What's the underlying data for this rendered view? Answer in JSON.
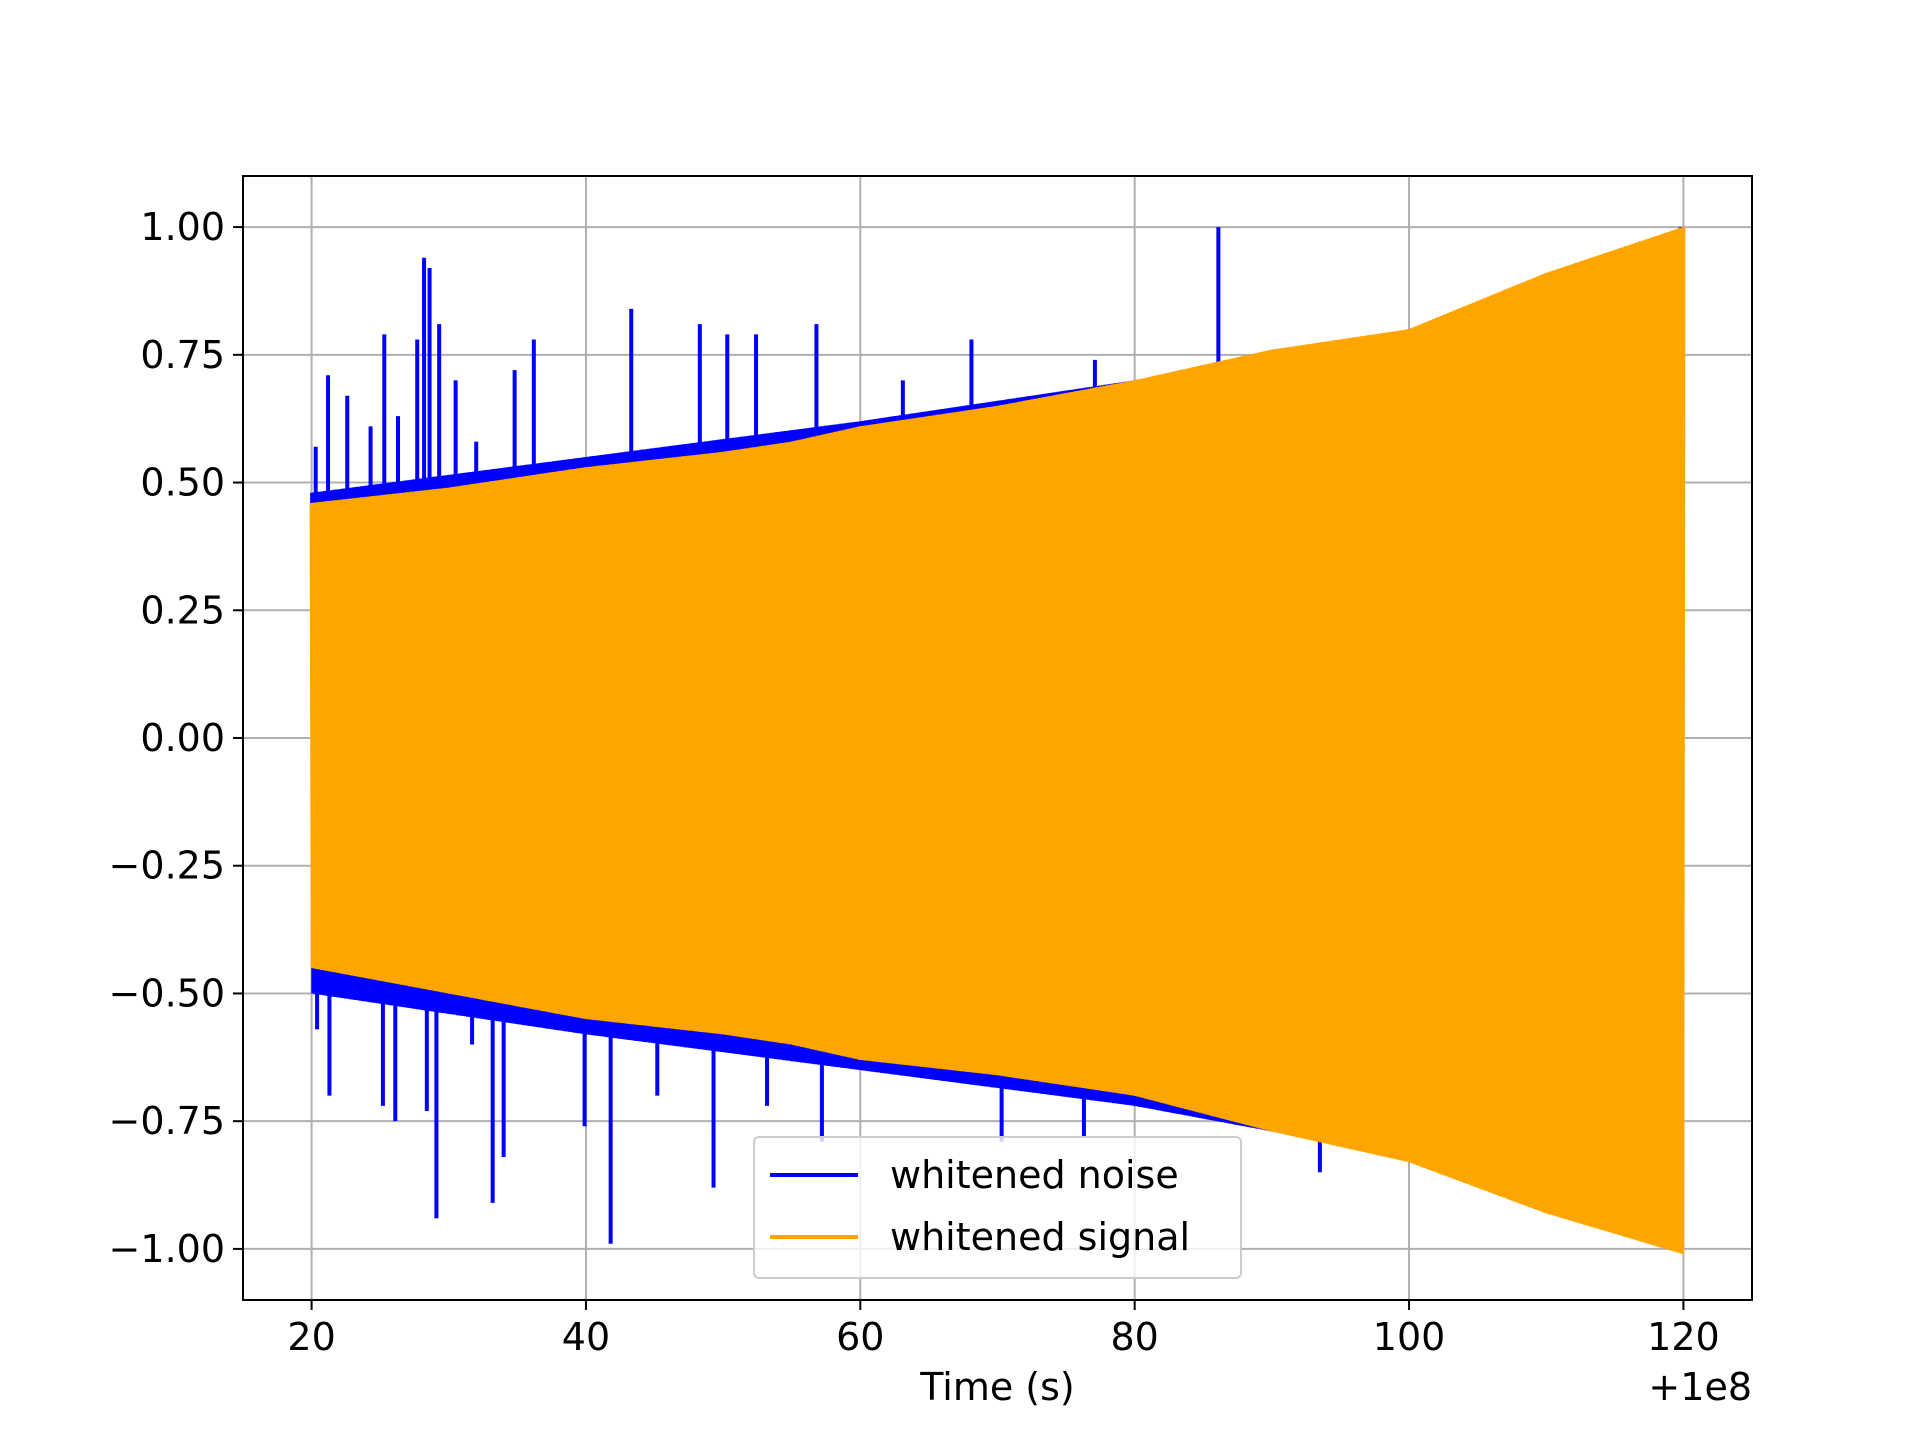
{
  "chart_data": {
    "type": "line",
    "title": "",
    "xlabel": "Time (s)",
    "ylabel": "",
    "x_offset_label": "+1e8",
    "xlim": [
      15,
      125
    ],
    "ylim": [
      -1.1,
      1.1
    ],
    "x_ticks": [
      20,
      40,
      60,
      80,
      100,
      120
    ],
    "x_tick_labels": [
      "20",
      "40",
      "60",
      "80",
      "100",
      "120"
    ],
    "y_ticks": [
      1.0,
      0.75,
      0.5,
      0.25,
      0.0,
      -0.25,
      -0.5,
      -0.75,
      -1.0
    ],
    "y_tick_labels": [
      "1.00",
      "0.75",
      "0.50",
      "0.25",
      "0.00",
      "−0.25",
      "−0.50",
      "−0.75",
      "−1.00"
    ],
    "grid": true,
    "legend_position": "lower-center",
    "series": [
      {
        "name": "whitened noise",
        "color": "#0000ff",
        "x_range": [
          20,
          120
        ],
        "envelope": {
          "x": [
            20,
            40,
            60,
            80,
            100,
            120
          ],
          "upper": [
            0.48,
            0.55,
            0.62,
            0.7,
            0.8,
            0.95
          ],
          "lower": [
            -0.5,
            -0.58,
            -0.65,
            -0.72,
            -0.82,
            -0.98
          ]
        },
        "spikes": [
          {
            "x": 20.3,
            "y": 0.57
          },
          {
            "x": 21.2,
            "y": 0.71
          },
          {
            "x": 22.6,
            "y": 0.67
          },
          {
            "x": 24.3,
            "y": 0.61
          },
          {
            "x": 25.3,
            "y": 0.79
          },
          {
            "x": 26.3,
            "y": 0.63
          },
          {
            "x": 27.7,
            "y": 0.78
          },
          {
            "x": 28.2,
            "y": 0.94
          },
          {
            "x": 28.6,
            "y": 0.92
          },
          {
            "x": 29.3,
            "y": 0.81
          },
          {
            "x": 30.5,
            "y": 0.7
          },
          {
            "x": 32.0,
            "y": 0.58
          },
          {
            "x": 34.8,
            "y": 0.72
          },
          {
            "x": 36.2,
            "y": 0.78
          },
          {
            "x": 43.3,
            "y": 0.84
          },
          {
            "x": 48.3,
            "y": 0.81
          },
          {
            "x": 50.3,
            "y": 0.79
          },
          {
            "x": 52.4,
            "y": 0.79
          },
          {
            "x": 56.8,
            "y": 0.81
          },
          {
            "x": 63.1,
            "y": 0.7
          },
          {
            "x": 68.1,
            "y": 0.78
          },
          {
            "x": 77.1,
            "y": 0.74
          },
          {
            "x": 86.1,
            "y": 1.0
          },
          {
            "x": 93.3,
            "y": 0.73
          },
          {
            "x": 119.8,
            "y": 1.0
          },
          {
            "x": 20.4,
            "y": -0.57
          },
          {
            "x": 21.3,
            "y": -0.7
          },
          {
            "x": 25.2,
            "y": -0.72
          },
          {
            "x": 26.1,
            "y": -0.75
          },
          {
            "x": 28.4,
            "y": -0.73
          },
          {
            "x": 29.1,
            "y": -0.94
          },
          {
            "x": 31.7,
            "y": -0.6
          },
          {
            "x": 33.2,
            "y": -0.91
          },
          {
            "x": 34.0,
            "y": -0.82
          },
          {
            "x": 39.9,
            "y": -0.76
          },
          {
            "x": 41.8,
            "y": -0.99
          },
          {
            "x": 45.2,
            "y": -0.7
          },
          {
            "x": 49.3,
            "y": -0.88
          },
          {
            "x": 53.2,
            "y": -0.72
          },
          {
            "x": 57.2,
            "y": -0.79
          },
          {
            "x": 70.3,
            "y": -0.79
          },
          {
            "x": 76.3,
            "y": -0.78
          },
          {
            "x": 93.5,
            "y": -0.85
          }
        ]
      },
      {
        "name": "whitened signal",
        "color": "#ffa500",
        "x_range": [
          20,
          120
        ],
        "envelope": {
          "x": [
            20,
            30,
            40,
            50,
            55,
            60,
            70,
            80,
            90,
            100,
            110,
            120
          ],
          "upper": [
            0.46,
            0.49,
            0.53,
            0.56,
            0.58,
            0.61,
            0.65,
            0.7,
            0.76,
            0.8,
            0.91,
            1.0
          ],
          "lower": [
            -0.45,
            -0.5,
            -0.55,
            -0.58,
            -0.6,
            -0.63,
            -0.66,
            -0.7,
            -0.77,
            -0.83,
            -0.93,
            -1.01
          ]
        }
      }
    ]
  }
}
